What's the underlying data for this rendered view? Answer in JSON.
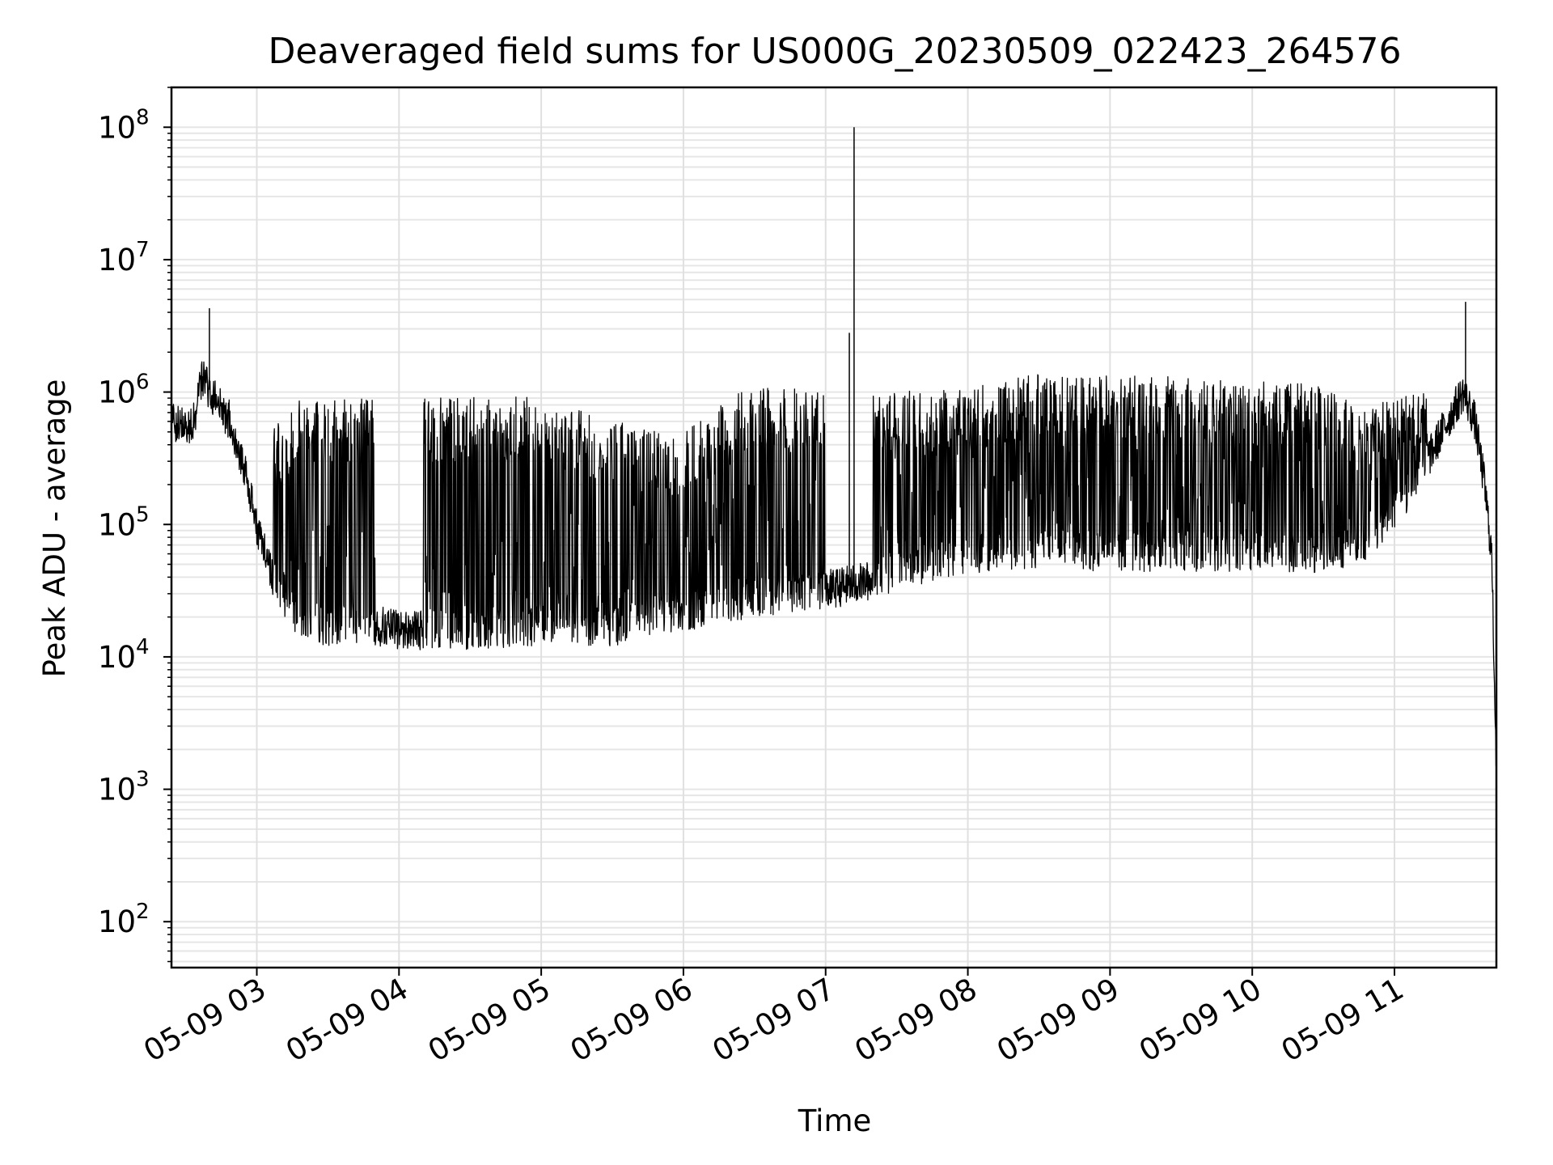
{
  "chart_data": {
    "type": "line",
    "title": "Deaveraged field sums for US000G_20230509_022423_264576",
    "xlabel": "Time",
    "ylabel": "Peak ADU - average",
    "y_scale": "log",
    "ylim": [
      45,
      200000000
    ],
    "xlim": [
      "2023-05-09 02:24",
      "2023-05-09 11:43"
    ],
    "grid": true,
    "x_ticks": [
      {
        "value": "2023-05-09 03:00",
        "label": "05-09 03"
      },
      {
        "value": "2023-05-09 04:00",
        "label": "05-09 04"
      },
      {
        "value": "2023-05-09 05:00",
        "label": "05-09 05"
      },
      {
        "value": "2023-05-09 06:00",
        "label": "05-09 06"
      },
      {
        "value": "2023-05-09 07:00",
        "label": "05-09 07"
      },
      {
        "value": "2023-05-09 08:00",
        "label": "05-09 08"
      },
      {
        "value": "2023-05-09 09:00",
        "label": "05-09 09"
      },
      {
        "value": "2023-05-09 10:00",
        "label": "05-09 10"
      },
      {
        "value": "2023-05-09 11:00",
        "label": "05-09 11"
      }
    ],
    "y_ticks": [
      {
        "value": 100,
        "base": "10",
        "exp": "2"
      },
      {
        "value": 1000,
        "base": "10",
        "exp": "3"
      },
      {
        "value": 10000,
        "base": "10",
        "exp": "4"
      },
      {
        "value": 100000,
        "base": "10",
        "exp": "5"
      },
      {
        "value": 1000000,
        "base": "10",
        "exp": "6"
      },
      {
        "value": 10000000,
        "base": "10",
        "exp": "7"
      },
      {
        "value": 100000000,
        "base": "10",
        "exp": "8"
      }
    ],
    "series": [
      {
        "color": "#000000",
        "baseline": [
          [
            "2023-05-09 02:24",
            600000
          ],
          [
            "2023-05-09 02:33",
            550000
          ],
          [
            "2023-05-09 02:37",
            1300000
          ],
          [
            "2023-05-09 02:42",
            900000
          ],
          [
            "2023-05-09 02:49",
            600000
          ],
          [
            "2023-05-09 02:54",
            300000
          ],
          [
            "2023-05-09 03:00",
            100000
          ],
          [
            "2023-05-09 03:07",
            40000
          ],
          [
            "2023-05-09 03:16",
            20000
          ],
          [
            "2023-05-09 03:30",
            17000
          ],
          [
            "2023-05-09 03:45",
            18000
          ],
          [
            "2023-05-09 04:00",
            16000
          ],
          [
            "2023-05-09 04:30",
            16000
          ],
          [
            "2023-05-09 05:00",
            17000
          ],
          [
            "2023-05-09 05:30",
            17000
          ],
          [
            "2023-05-09 06:00",
            22000
          ],
          [
            "2023-05-09 06:30",
            28000
          ],
          [
            "2023-05-09 07:00",
            32000
          ],
          [
            "2023-05-09 07:20",
            38000
          ],
          [
            "2023-05-09 07:40",
            50000
          ],
          [
            "2023-05-09 08:00",
            60000
          ],
          [
            "2023-05-09 08:30",
            65000
          ],
          [
            "2023-05-09 09:00",
            62000
          ],
          [
            "2023-05-09 09:30",
            62000
          ],
          [
            "2023-05-09 10:00",
            62000
          ],
          [
            "2023-05-09 10:30",
            60000
          ],
          [
            "2023-05-09 10:50",
            75000
          ],
          [
            "2023-05-09 11:10",
            220000
          ],
          [
            "2023-05-09 11:20",
            500000
          ],
          [
            "2023-05-09 11:29",
            1000000
          ],
          [
            "2023-05-09 11:34",
            600000
          ],
          [
            "2023-05-09 11:38",
            200000
          ],
          [
            "2023-05-09 11:41",
            60000
          ],
          [
            "2023-05-09 11:43",
            1500
          ]
        ],
        "peak_envelope": [
          [
            "2023-05-09 02:24",
            750000
          ],
          [
            "2023-05-09 02:40",
            1500000
          ],
          [
            "2023-05-09 02:50",
            800000
          ],
          [
            "2023-05-09 03:00",
            400000
          ],
          [
            "2023-05-09 03:20",
            950000
          ],
          [
            "2023-05-09 04:00",
            900000
          ],
          [
            "2023-05-09 04:30",
            950000
          ],
          [
            "2023-05-09 05:00",
            900000
          ],
          [
            "2023-05-09 05:30",
            600000
          ],
          [
            "2023-05-09 06:00",
            500000
          ],
          [
            "2023-05-09 06:30",
            1200000
          ],
          [
            "2023-05-09 07:00",
            1000000
          ],
          [
            "2023-05-09 07:30",
            1000000
          ],
          [
            "2023-05-09 08:00",
            1100000
          ],
          [
            "2023-05-09 08:30",
            1400000
          ],
          [
            "2023-05-09 09:00",
            1350000
          ],
          [
            "2023-05-09 09:30",
            1300000
          ],
          [
            "2023-05-09 10:00",
            1200000
          ],
          [
            "2023-05-09 10:30",
            1150000
          ],
          [
            "2023-05-09 10:50",
            800000
          ],
          [
            "2023-05-09 11:20",
            1100000
          ]
        ],
        "active_spike_windows": [
          [
            "2023-05-09 03:07",
            "2023-05-09 03:50"
          ],
          [
            "2023-05-09 04:10",
            "2023-05-09 05:15"
          ],
          [
            "2023-05-09 05:15",
            "2023-05-09 06:00"
          ],
          [
            "2023-05-09 06:00",
            "2023-05-09 07:00"
          ],
          [
            "2023-05-09 07:20",
            "2023-05-09 08:30"
          ],
          [
            "2023-05-09 08:30",
            "2023-05-09 11:15"
          ]
        ],
        "spikes": [
          [
            "2023-05-09 02:40",
            4300000
          ],
          [
            "2023-05-09 07:10",
            2800000
          ],
          [
            "2023-05-09 07:12",
            100000000
          ],
          [
            "2023-05-09 11:30",
            4800000
          ]
        ]
      }
    ]
  }
}
